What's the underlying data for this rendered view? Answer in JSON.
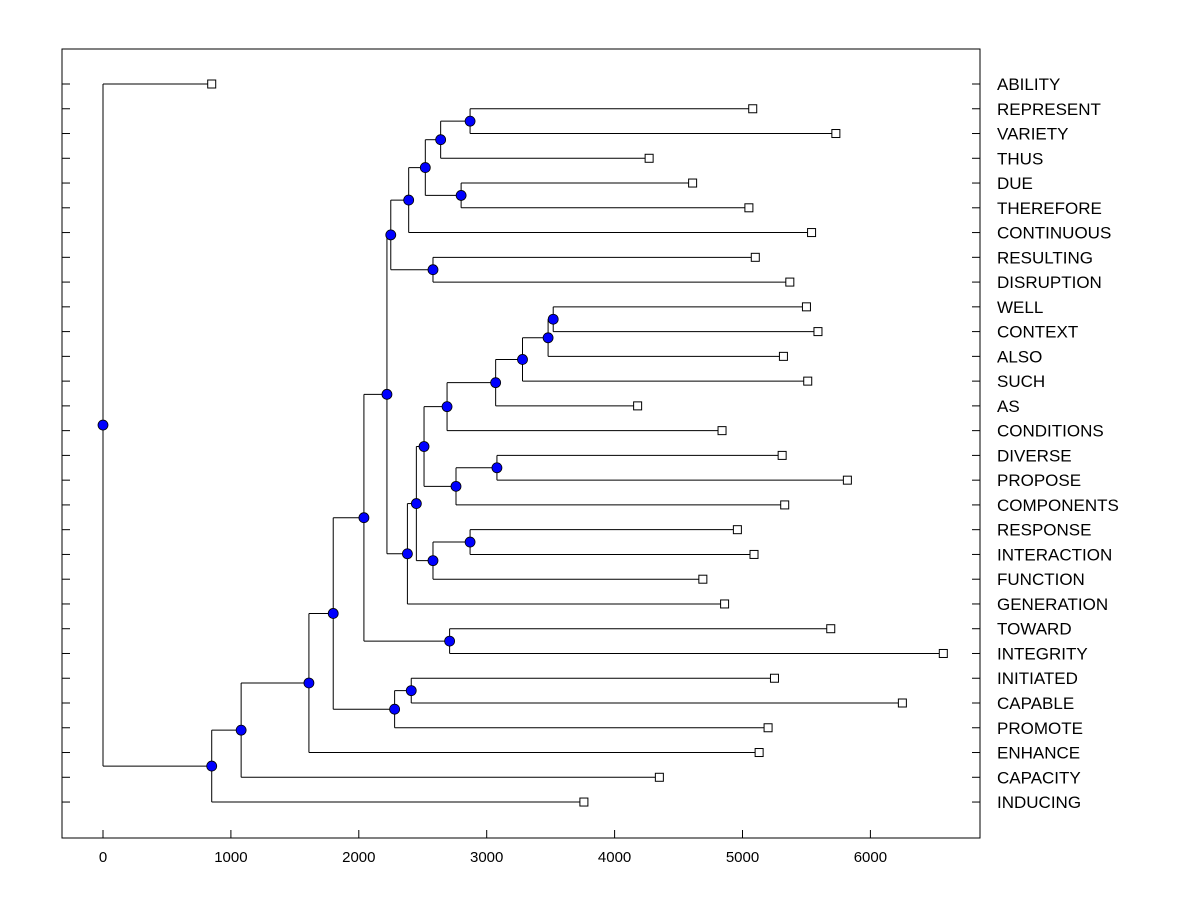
{
  "chart_data": {
    "type": "dendrogram",
    "title": "",
    "xlabel": "",
    "ylabel": "",
    "xlim": [
      -300,
      6850
    ],
    "xticks": [
      0,
      1000,
      2000,
      3000,
      4000,
      5000,
      6000
    ],
    "grid": false,
    "node_color": "#0000ff",
    "leaves": [
      {
        "label": "ABILITY",
        "x": 850
      },
      {
        "label": "REPRESENT",
        "x": 5080
      },
      {
        "label": "VARIETY",
        "x": 5730
      },
      {
        "label": "THUS",
        "x": 4270
      },
      {
        "label": "DUE",
        "x": 4610
      },
      {
        "label": "THEREFORE",
        "x": 5050
      },
      {
        "label": "CONTINUOUS",
        "x": 5540
      },
      {
        "label": "RESULTING",
        "x": 5100
      },
      {
        "label": "DISRUPTION",
        "x": 5370
      },
      {
        "label": "WELL",
        "x": 5500
      },
      {
        "label": "CONTEXT",
        "x": 5590
      },
      {
        "label": "ALSO",
        "x": 5320
      },
      {
        "label": "SUCH",
        "x": 5510
      },
      {
        "label": "AS",
        "x": 4180
      },
      {
        "label": "CONDITIONS",
        "x": 4840
      },
      {
        "label": "DIVERSE",
        "x": 5310
      },
      {
        "label": "PROPOSE",
        "x": 5820
      },
      {
        "label": "COMPONENTS",
        "x": 5330
      },
      {
        "label": "RESPONSE",
        "x": 4960
      },
      {
        "label": "INTERACTION",
        "x": 5090
      },
      {
        "label": "FUNCTION",
        "x": 4690
      },
      {
        "label": "GENERATION",
        "x": 4860
      },
      {
        "label": "TOWARD",
        "x": 5690
      },
      {
        "label": "INTEGRITY",
        "x": 6570
      },
      {
        "label": "INITIATED",
        "x": 5250
      },
      {
        "label": "CAPABLE",
        "x": 6250
      },
      {
        "label": "PROMOTE",
        "x": 5200
      },
      {
        "label": "ENHANCE",
        "x": 5130
      },
      {
        "label": "CAPACITY",
        "x": 4350
      },
      {
        "label": "INDUCING",
        "x": 3760
      }
    ],
    "merges": [
      {
        "id": "m1",
        "x": 2870,
        "children": [
          "L1",
          "L2"
        ]
      },
      {
        "id": "m2",
        "x": 2640,
        "children": [
          "m1",
          "L3"
        ]
      },
      {
        "id": "m3",
        "x": 2800,
        "children": [
          "L4",
          "L5"
        ]
      },
      {
        "id": "m4",
        "x": 2520,
        "children": [
          "m2",
          "m3"
        ]
      },
      {
        "id": "m5",
        "x": 2390,
        "children": [
          "m4",
          "L6"
        ]
      },
      {
        "id": "m6",
        "x": 2580,
        "children": [
          "L7",
          "L8"
        ]
      },
      {
        "id": "m7",
        "x": 2250,
        "children": [
          "m5",
          "m6"
        ]
      },
      {
        "id": "m8",
        "x": 3520,
        "children": [
          "L9",
          "L10"
        ]
      },
      {
        "id": "m9",
        "x": 3480,
        "children": [
          "m8",
          "L11"
        ]
      },
      {
        "id": "m10",
        "x": 3280,
        "children": [
          "m9",
          "L12"
        ]
      },
      {
        "id": "m11",
        "x": 3070,
        "children": [
          "m10",
          "L13"
        ]
      },
      {
        "id": "m12",
        "x": 2690,
        "children": [
          "m11",
          "L14"
        ]
      },
      {
        "id": "m13",
        "x": 3080,
        "children": [
          "L15",
          "L16"
        ]
      },
      {
        "id": "m14",
        "x": 2760,
        "children": [
          "m13",
          "L17"
        ]
      },
      {
        "id": "m15",
        "x": 2510,
        "children": [
          "m12",
          "m14"
        ]
      },
      {
        "id": "m16",
        "x": 2870,
        "children": [
          "L18",
          "L19"
        ]
      },
      {
        "id": "m17",
        "x": 2580,
        "children": [
          "m16",
          "L20"
        ]
      },
      {
        "id": "m18",
        "x": 2450,
        "children": [
          "m15",
          "m17"
        ]
      },
      {
        "id": "m19",
        "x": 2380,
        "children": [
          "m18",
          "L21"
        ]
      },
      {
        "id": "m20",
        "x": 2220,
        "children": [
          "m7",
          "m19"
        ]
      },
      {
        "id": "m21",
        "x": 2710,
        "children": [
          "L22",
          "L23"
        ]
      },
      {
        "id": "m22",
        "x": 2040,
        "children": [
          "m20",
          "m21"
        ]
      },
      {
        "id": "m23",
        "x": 2410,
        "children": [
          "L24",
          "L25"
        ]
      },
      {
        "id": "m24",
        "x": 2280,
        "children": [
          "m23",
          "L26"
        ]
      },
      {
        "id": "m25",
        "x": 1800,
        "children": [
          "m22",
          "m24"
        ]
      },
      {
        "id": "m26",
        "x": 1610,
        "children": [
          "m25",
          "L27"
        ]
      },
      {
        "id": "m27",
        "x": 1080,
        "children": [
          "m26",
          "L28"
        ]
      },
      {
        "id": "m28",
        "x": 850,
        "children": [
          "m27",
          "L29"
        ]
      },
      {
        "id": "m29",
        "x": 0,
        "children": [
          "L0",
          "m28"
        ]
      }
    ]
  }
}
